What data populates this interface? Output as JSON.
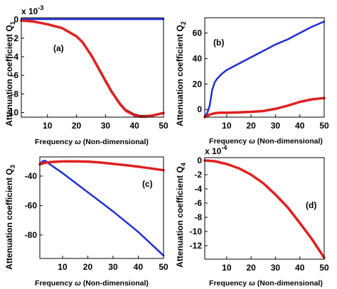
{
  "chart_data": [
    {
      "type": "line",
      "panel_label": "(a)",
      "ylabel_main": "Attenuation coefficient Q",
      "ylabel_sub": "1",
      "xlabel_main": "Frequency ",
      "xlabel_symbol": "ω",
      "xlabel_tail": " (Non-dimensional)",
      "multiplier_base": "x 10",
      "multiplier_exp": "-3",
      "xlim": [
        1,
        50
      ],
      "ylim": [
        -10.5,
        0.2
      ],
      "xticks": [
        10,
        20,
        30,
        40,
        50
      ],
      "yticks": [
        0,
        -2,
        -4,
        -6,
        -8,
        -10
      ],
      "series": [
        {
          "color": "#1f2fd6",
          "width": 2.5,
          "x": [
            1,
            5,
            10,
            20,
            30,
            40,
            50
          ],
          "y": [
            0.05,
            0.05,
            0.05,
            0.05,
            0.05,
            0.05,
            0.05
          ]
        },
        {
          "color": "#111111",
          "width": 2.2,
          "x": [
            1,
            5,
            10,
            15,
            20,
            22,
            25,
            27,
            30,
            32,
            35,
            37,
            40,
            42,
            44,
            46,
            48,
            50
          ],
          "y": [
            -0.1,
            -0.2,
            -0.5,
            -0.9,
            -1.8,
            -2.4,
            -3.7,
            -4.8,
            -6.5,
            -7.6,
            -9.0,
            -9.7,
            -10.2,
            -10.35,
            -10.35,
            -10.3,
            -10.15,
            -10.0
          ]
        },
        {
          "color": "#e02020",
          "width": 3.5,
          "x": [
            1,
            5,
            10,
            15,
            20,
            22,
            25,
            27,
            30,
            32,
            35,
            37,
            40,
            42,
            44,
            46,
            48,
            50
          ],
          "y": [
            -0.1,
            -0.2,
            -0.5,
            -0.9,
            -1.8,
            -2.4,
            -3.8,
            -4.9,
            -6.6,
            -7.7,
            -9.1,
            -9.8,
            -10.3,
            -10.45,
            -10.45,
            -10.35,
            -10.2,
            -10.05
          ]
        }
      ]
    },
    {
      "type": "line",
      "panel_label": "(b)",
      "ylabel_main": "Attenuation coefficient Q",
      "ylabel_sub": "2",
      "xlabel_main": "Frequency ",
      "xlabel_symbol": "ω",
      "xlabel_tail": " (Non-dimensional)",
      "multiplier_base": "",
      "multiplier_exp": "",
      "xlim": [
        1,
        50
      ],
      "ylim": [
        -6,
        72
      ],
      "xticks": [
        10,
        20,
        30,
        40,
        50
      ],
      "yticks": [
        0,
        20,
        40,
        60
      ],
      "series": [
        {
          "color": "#1f2fd6",
          "width": 2.5,
          "x": [
            1,
            2,
            3,
            4,
            5,
            6,
            8,
            10,
            15,
            20,
            25,
            30,
            35,
            40,
            45,
            50
          ],
          "y": [
            -5,
            -3,
            3,
            15,
            21,
            24,
            28,
            31,
            36,
            41,
            46,
            51,
            55,
            60,
            65,
            69
          ]
        },
        {
          "color": "#e02020",
          "width": 3.5,
          "x": [
            1,
            3,
            5,
            7,
            10,
            15,
            20,
            25,
            30,
            35,
            40,
            45,
            50
          ],
          "y": [
            -6,
            -4,
            -3,
            -2.5,
            -2.5,
            -2.2,
            -1.8,
            -1.2,
            0.5,
            3,
            6,
            8,
            9
          ]
        }
      ]
    },
    {
      "type": "line",
      "panel_label": "(c)",
      "ylabel_main": "Attenuation coefficient Q",
      "ylabel_sub": "3",
      "xlabel_main": "Frequency ",
      "xlabel_symbol": "ω",
      "xlabel_tail": " (Non-dimensional)",
      "multiplier_base": "",
      "multiplier_exp": "",
      "xlim": [
        1,
        50
      ],
      "ylim": [
        -96,
        -27
      ],
      "xticks": [
        10,
        20,
        30,
        40,
        50
      ],
      "yticks": [
        -40,
        -60,
        -80
      ],
      "series": [
        {
          "color": "#1f2fd6",
          "width": 2.5,
          "x": [
            1,
            2,
            3,
            4,
            5,
            10,
            20,
            30,
            40,
            50
          ],
          "y": [
            -32,
            -30,
            -29.5,
            -30.5,
            -32,
            -38,
            -51,
            -64,
            -78,
            -94
          ]
        },
        {
          "color": "#e02020",
          "width": 3.5,
          "x": [
            1,
            3,
            5,
            10,
            15,
            20,
            25,
            30,
            35,
            40,
            45,
            50
          ],
          "y": [
            -32,
            -31,
            -30.5,
            -30,
            -30,
            -30.2,
            -30.8,
            -31.7,
            -32.6,
            -33.6,
            -34.8,
            -36
          ]
        }
      ]
    },
    {
      "type": "line",
      "panel_label": "(d)",
      "ylabel_main": "Attenuation coefficient Q",
      "ylabel_sub": "4",
      "xlabel_main": "Frequency ",
      "xlabel_symbol": "ω",
      "xlabel_tail": " (Non-dimensional)",
      "multiplier_base": "x 10",
      "multiplier_exp": "-4",
      "xlim": [
        1,
        50
      ],
      "ylim": [
        -13.9,
        0.4
      ],
      "xticks": [
        10,
        20,
        30,
        40,
        50
      ],
      "yticks": [
        0,
        -2,
        -4,
        -6,
        -8,
        -10,
        -12
      ],
      "series": [
        {
          "color": "#e02020",
          "width": 3.5,
          "x": [
            1,
            5,
            10,
            15,
            20,
            25,
            30,
            35,
            40,
            45,
            50
          ],
          "y": [
            0,
            -0.1,
            -0.5,
            -1.1,
            -2.0,
            -3.2,
            -4.8,
            -6.6,
            -8.8,
            -11.1,
            -13.7
          ]
        }
      ]
    }
  ]
}
